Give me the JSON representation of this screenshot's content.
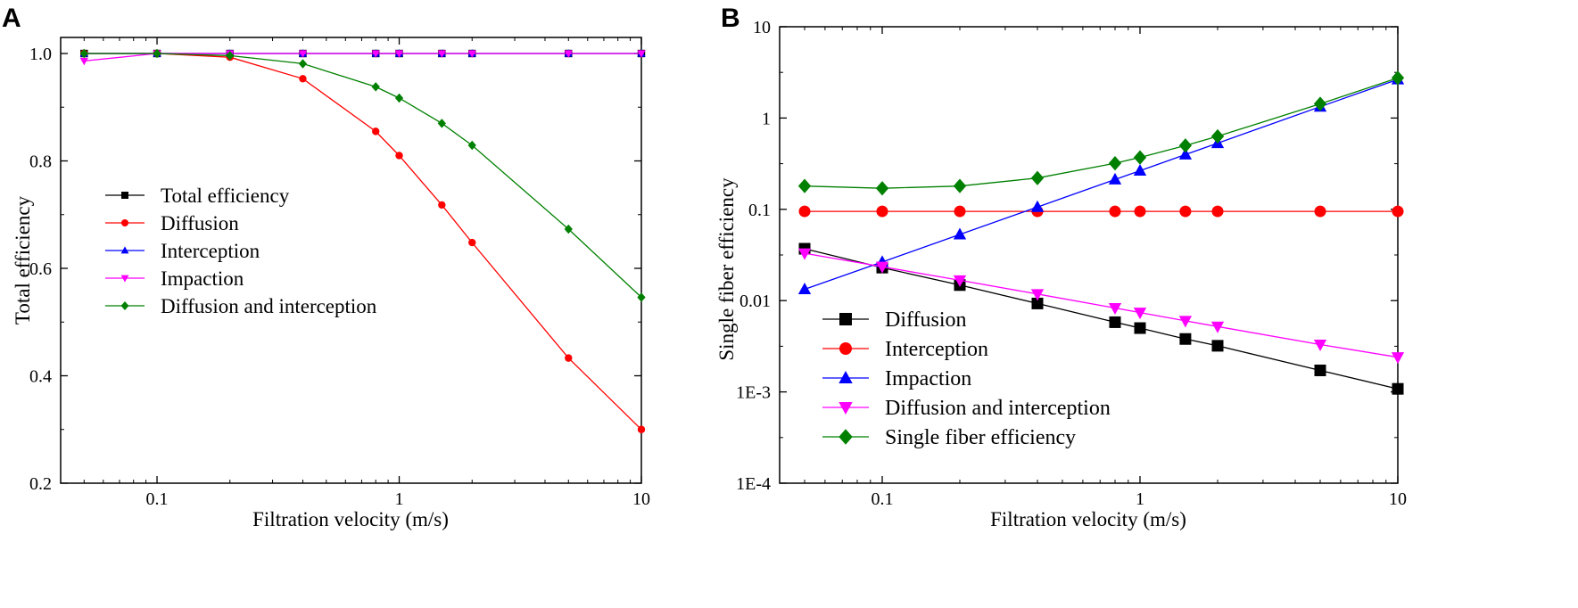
{
  "chart_data": [
    {
      "type": "line",
      "panel_label": "A",
      "xscale": "log",
      "xlim": [
        0.04,
        10
      ],
      "ylim": [
        0.2,
        1.0
      ],
      "xlabel": "Filtration velocity (m/s)",
      "ylabel": "Total efficiency",
      "xticks": [
        0.1,
        1,
        10
      ],
      "xtick_labels": [
        "0.1",
        "1",
        "10"
      ],
      "yticks": [
        0.2,
        0.4,
        0.6,
        0.8,
        1.0
      ],
      "ytick_labels": [
        "0.2",
        "0.4",
        "0.6",
        "0.8",
        "1.0"
      ],
      "legend_position": "center-left",
      "x": [
        0.05,
        0.1,
        0.2,
        0.4,
        0.8,
        1,
        1.5,
        2,
        5,
        10
      ],
      "series": [
        {
          "name": "Total efficiency",
          "color": "#000000",
          "marker": "square",
          "values": [
            1.0,
            1.0,
            1.0,
            1.0,
            1.0,
            1.0,
            1.0,
            1.0,
            1.0,
            1.0
          ]
        },
        {
          "name": "Diffusion",
          "color": "#ff0000",
          "marker": "circle",
          "values": [
            1.0,
            1.0,
            0.993,
            0.953,
            0.855,
            0.81,
            0.718,
            0.648,
            0.433,
            0.3
          ]
        },
        {
          "name": "Interception",
          "color": "#0000ff",
          "marker": "triangle-up",
          "values": [
            1.0,
            1.0,
            1.0,
            1.0,
            1.0,
            1.0,
            1.0,
            1.0,
            1.0,
            1.0
          ]
        },
        {
          "name": "Impaction",
          "color": "#ff00ff",
          "marker": "triangle-down",
          "values": [
            0.986,
            1.0,
            1.0,
            1.0,
            1.0,
            1.0,
            1.0,
            1.0,
            1.0,
            1.0
          ]
        },
        {
          "name": "Diffusion and interception",
          "color": "#008000",
          "marker": "diamond",
          "values": [
            1.0,
            1.0,
            0.996,
            0.981,
            0.938,
            0.917,
            0.87,
            0.829,
            0.673,
            0.546
          ]
        }
      ]
    },
    {
      "type": "line",
      "panel_label": "B",
      "xscale": "log",
      "yscale": "log",
      "xlim": [
        0.04,
        10
      ],
      "ylim": [
        0.0001,
        10
      ],
      "xlabel": "Filtration velocity (m/s)",
      "ylabel": "Single fiber efficiency",
      "xticks": [
        0.1,
        1,
        10
      ],
      "xtick_labels": [
        "0.1",
        "1",
        "10"
      ],
      "yticks": [
        0.0001,
        0.001,
        0.01,
        0.1,
        1,
        10
      ],
      "ytick_labels": [
        "1E-4",
        "1E-3",
        "0.01",
        "0.1",
        "1",
        "10"
      ],
      "legend_position": "bottom-left",
      "x": [
        0.05,
        0.1,
        0.2,
        0.4,
        0.8,
        1,
        1.5,
        2,
        5,
        10
      ],
      "series": [
        {
          "name": "Diffusion",
          "color": "#000000",
          "marker": "square",
          "values": [
            0.037,
            0.023,
            0.0148,
            0.0093,
            0.0058,
            0.005,
            0.0038,
            0.0032,
            0.00172,
            0.00108
          ]
        },
        {
          "name": "Interception",
          "color": "#ff0000",
          "marker": "circle",
          "values": [
            0.095,
            0.095,
            0.095,
            0.095,
            0.095,
            0.095,
            0.095,
            0.095,
            0.095,
            0.095
          ]
        },
        {
          "name": "Impaction",
          "color": "#0000ff",
          "marker": "triangle-up",
          "values": [
            0.0133,
            0.0265,
            0.053,
            0.106,
            0.212,
            0.265,
            0.398,
            0.53,
            1.33,
            2.65
          ]
        },
        {
          "name": "Diffusion and interception",
          "color": "#ff00ff",
          "marker": "triangle-down",
          "values": [
            0.033,
            0.0235,
            0.0167,
            0.0118,
            0.0083,
            0.0074,
            0.006,
            0.0052,
            0.0033,
            0.0024
          ]
        },
        {
          "name": "Single fiber efficiency",
          "color": "#008000",
          "marker": "diamond",
          "values": [
            0.18,
            0.17,
            0.18,
            0.22,
            0.32,
            0.37,
            0.5,
            0.63,
            1.43,
            2.75
          ]
        }
      ]
    }
  ]
}
